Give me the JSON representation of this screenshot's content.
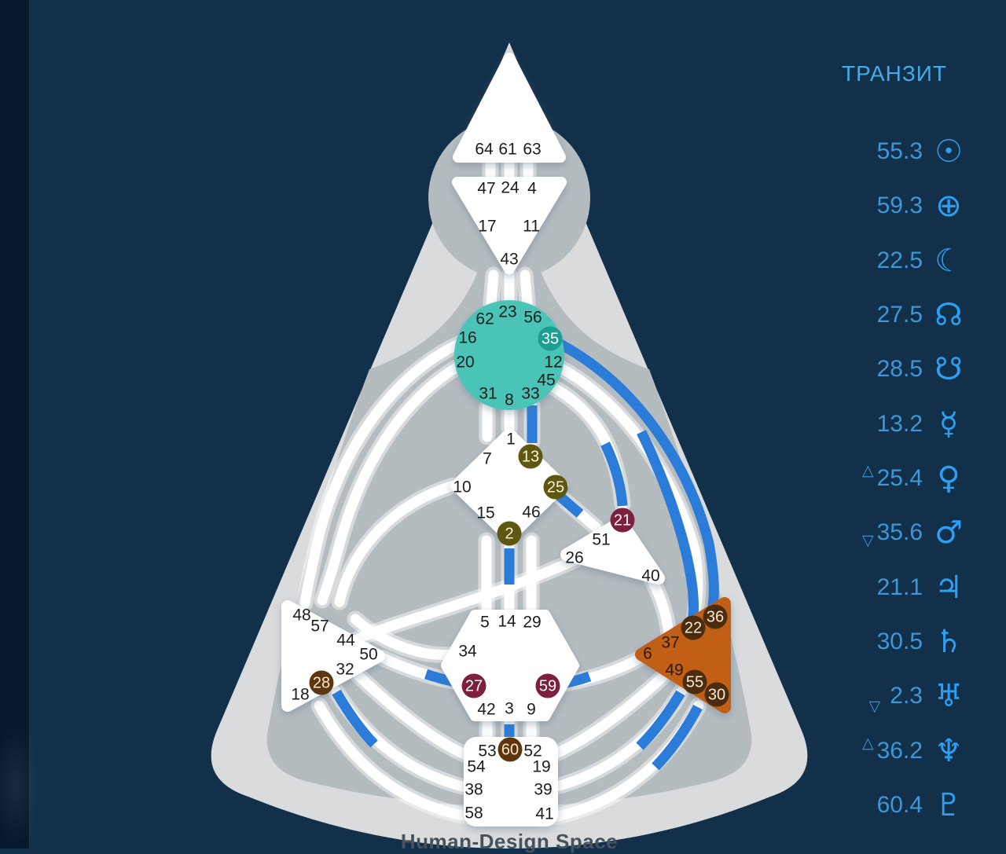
{
  "watermark": "Human-Design Space",
  "transit_panel": {
    "title": "ТРАНЗИТ",
    "rows": [
      {
        "value": "55.3",
        "planet": "sun",
        "symbol": "☉",
        "marker": null
      },
      {
        "value": "59.3",
        "planet": "earth",
        "symbol": "⊕",
        "marker": null
      },
      {
        "value": "22.5",
        "planet": "moon",
        "symbol": "☾",
        "marker": null
      },
      {
        "value": "27.5",
        "planet": "north-node",
        "symbol": "☊",
        "marker": null
      },
      {
        "value": "28.5",
        "planet": "south-node",
        "symbol": "☋",
        "marker": null
      },
      {
        "value": "13.2",
        "planet": "mercury",
        "symbol": "☿",
        "marker": null
      },
      {
        "value": "25.4",
        "planet": "venus",
        "symbol": "♀",
        "marker": "up"
      },
      {
        "value": "35.6",
        "planet": "mars",
        "symbol": "♂",
        "marker": "down"
      },
      {
        "value": "21.1",
        "planet": "jupiter",
        "symbol": "♃",
        "marker": null
      },
      {
        "value": "30.5",
        "planet": "saturn",
        "symbol": "♄",
        "marker": null
      },
      {
        "value": "2.3",
        "planet": "uranus",
        "symbol": "♅",
        "marker": "down-low"
      },
      {
        "value": "36.2",
        "planet": "neptune",
        "symbol": "♆",
        "marker": "up"
      },
      {
        "value": "60.4",
        "planet": "pluto",
        "symbol": "♇",
        "marker": null
      }
    ]
  },
  "bodygraph": {
    "centers": [
      {
        "id": "head",
        "gates": [
          64,
          61,
          63
        ],
        "active_gates": []
      },
      {
        "id": "ajna",
        "gates": [
          47,
          24,
          4,
          17,
          11,
          43
        ],
        "active_gates": []
      },
      {
        "id": "throat",
        "gates": [
          62,
          23,
          56,
          16,
          35,
          20,
          12,
          45,
          31,
          8,
          33
        ],
        "active_gates": [
          35
        ]
      },
      {
        "id": "g",
        "gates": [
          1,
          7,
          13,
          10,
          25,
          15,
          46,
          2
        ],
        "active_gates": [
          13,
          25,
          2
        ]
      },
      {
        "id": "heart",
        "gates": [
          21,
          51,
          26,
          40
        ],
        "active_gates": [
          21
        ]
      },
      {
        "id": "spleen",
        "gates": [
          48,
          57,
          44,
          50,
          32,
          28,
          18
        ],
        "active_gates": [
          28
        ]
      },
      {
        "id": "solar-plexus",
        "gates": [
          36,
          22,
          37,
          6,
          49,
          55,
          30
        ],
        "active_gates": [
          36,
          22,
          55,
          30
        ]
      },
      {
        "id": "sacral",
        "gates": [
          5,
          14,
          29,
          34,
          27,
          59,
          42,
          3,
          9
        ],
        "active_gates": [
          27,
          59
        ]
      },
      {
        "id": "root",
        "gates": [
          53,
          60,
          52,
          54,
          19,
          38,
          39,
          58,
          41
        ],
        "active_gates": [
          60
        ]
      }
    ],
    "colors": {
      "background": "#13304a",
      "left_strip": "#05192c",
      "aura_outer": "#d9dbdd",
      "aura_inner": "#b5bcc0",
      "channel_white": "#ffffff",
      "channel_active_blue": "#2b7cd9",
      "throat_fill": "#4cc4b8",
      "throat_active": "#1aa092",
      "g_active": "#5d5712",
      "heart_active": "#7d1f3e",
      "spleen_active": "#5e3511",
      "root_active": "#5e3511",
      "solar_plexus_fill": "#c25e15",
      "solar_plexus_active": "#4b2c0e",
      "transit_text": "#3d97d6",
      "transit_symbol": "#2e9ff0"
    }
  }
}
